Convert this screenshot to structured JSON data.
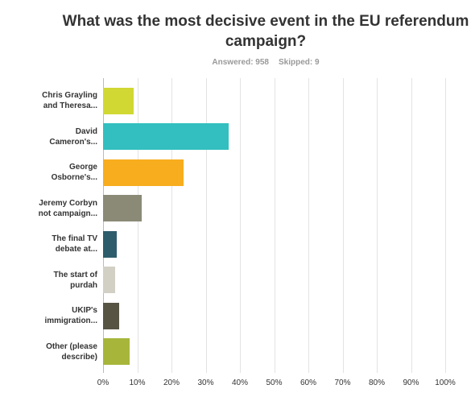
{
  "chart_data": {
    "type": "hbar",
    "title": "What was the most decisive event in the EU referendum campaign?",
    "answered": "Answered: 958",
    "skipped": "Skipped: 9",
    "categories": [
      "Chris Grayling\nand Theresa...",
      "David\nCameron's...",
      "George\nOsborne's...",
      "Jeremy Corbyn\nnot campaign...",
      "The final TV\ndebate at...",
      "The start of\npurdah",
      "UKIP's\nimmigration...",
      "Other (please\ndescribe)"
    ],
    "values": [
      9,
      36.7,
      23.5,
      11.3,
      4,
      3.5,
      4.7,
      7.8
    ],
    "colors": [
      "#d1d833",
      "#33bfbf",
      "#f7ad1e",
      "#8b8a77",
      "#2d5d6b",
      "#d2d0c4",
      "#575444",
      "#a7b63a"
    ],
    "xlim": [
      0,
      100
    ],
    "xticks": [
      {
        "value": 0,
        "label": "0%"
      },
      {
        "value": 10,
        "label": "10%"
      },
      {
        "value": 20,
        "label": "20%"
      },
      {
        "value": 30,
        "label": "30%"
      },
      {
        "value": 40,
        "label": "40%"
      },
      {
        "value": 50,
        "label": "50%"
      },
      {
        "value": 60,
        "label": "60%"
      },
      {
        "value": 70,
        "label": "70%"
      },
      {
        "value": 80,
        "label": "80%"
      },
      {
        "value": 90,
        "label": "90%"
      },
      {
        "value": 100,
        "label": "100%"
      }
    ],
    "grid": true
  }
}
